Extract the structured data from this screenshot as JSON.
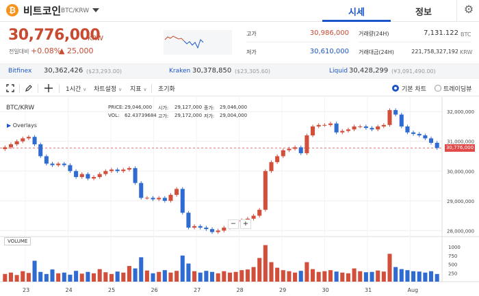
{
  "header": {
    "coin_symbol": "₿",
    "coin_name": "비트코인",
    "pair": "BTC/KRW",
    "tabs": [
      "시세",
      "정보"
    ],
    "settings_icon": "gear-icon"
  },
  "price": {
    "value": "30,776,000",
    "unit": "KRW",
    "change_label": "전일대비",
    "change_pct": "+0.08%",
    "change_amt": "▲ 25,000"
  },
  "stats": {
    "high_label": "고가",
    "high_value": "30,986,000",
    "low_label": "저가",
    "low_value": "30,610,000",
    "volume_label": "거래량(24H)",
    "volume_value": "7,131.122",
    "volume_unit": "BTC",
    "amount_label": "거래대금(24H)",
    "amount_value": "221,758,327,192",
    "amount_unit": "KRW"
  },
  "exchanges": [
    {
      "name": "Bitfinex",
      "value": "30,362,426",
      "krw": "($23,293.00)"
    },
    {
      "name": "Kraken",
      "value": "30,378,850",
      "krw": "($23,305.60)"
    },
    {
      "name": "Liquid",
      "value": "30,428,299",
      "krw": "(¥3,091,490.00)"
    }
  ],
  "toolbar": {
    "interval": "1시간",
    "chart_settings": "차트설정",
    "indicators": "지표",
    "reset": "초기화",
    "view_basic": "기본 차트",
    "view_tradingview": "트레이딩뷰",
    "selected_view": "기본 차트"
  },
  "chart_info": {
    "symbol": "BTC/KRW",
    "overlays": "Overlays",
    "price_label": "PRICE:",
    "price_value": "29,046,000",
    "vol_label": "VOL:",
    "vol_value": "62.43739684",
    "open_label": "시가:",
    "open_value": "29,127,000",
    "high_label": "고가:",
    "high_value": "29,172,000",
    "close_label": "종가:",
    "close_value": "29,046,000",
    "low_label": "저가:",
    "low_value": "29,004,000",
    "volume_title": "VOLUME",
    "current_price_tag": "30,776,000",
    "zoom_out": "−",
    "zoom_in": "+"
  },
  "chart_data": {
    "type": "candlestick",
    "interval": "1h",
    "price_axis": [
      "32,000,000",
      "31,000,000",
      "30,000,000",
      "29,000,000",
      "28,000,000"
    ],
    "price_axis_values": [
      32000000,
      31000000,
      30000000,
      29000000,
      28000000
    ],
    "ylim": [
      27800000,
      32350000
    ],
    "volume_axis": [
      "1000",
      "750",
      "500",
      "250"
    ],
    "volume_axis_values": [
      1000,
      750,
      500,
      250
    ],
    "volume_ylim": [
      0,
      1100
    ],
    "x_ticks": [
      "23",
      "24",
      "25",
      "26",
      "27",
      "28",
      "29",
      "30",
      "31",
      "Aug"
    ],
    "current_price": 30776000,
    "close_series": [
      30800000,
      30900000,
      31000000,
      31100000,
      31150000,
      30900000,
      30500000,
      30250000,
      30200000,
      30250000,
      30200000,
      30000000,
      29800000,
      29900000,
      29750000,
      29800000,
      29900000,
      30000000,
      30050000,
      30000000,
      30050000,
      30100000,
      29600000,
      29100000,
      29100000,
      29050000,
      29100000,
      29000000,
      29200000,
      29400000,
      28600000,
      28100000,
      28150000,
      28100000,
      28050000,
      27950000,
      28000000,
      28100000,
      28200000,
      28300000,
      28350000,
      28400000,
      28500000,
      28700000,
      30000000,
      30300000,
      30500000,
      30700000,
      30750000,
      30800000,
      30600000,
      31200000,
      31500000,
      31550000,
      31550000,
      31600000,
      31300000,
      31350000,
      31400000,
      31500000,
      31500000,
      31450000,
      31400000,
      31500000,
      31550000,
      32050000,
      31900000,
      31500000,
      31300000,
      31250000,
      31200000,
      31100000,
      30950000,
      30776000
    ],
    "volume_series": [
      220,
      260,
      190,
      300,
      250,
      600,
      280,
      220,
      350,
      240,
      260,
      200,
      310,
      230,
      280,
      240,
      360,
      270,
      220,
      290,
      260,
      450,
      380,
      700,
      320,
      240,
      280,
      330,
      260,
      310,
      750,
      520,
      300,
      260,
      310,
      280,
      240,
      300,
      260,
      280,
      330,
      350,
      420,
      680,
      1050,
      560,
      400,
      330,
      300,
      260,
      310,
      560,
      360,
      280,
      300,
      330,
      290,
      260,
      240,
      380,
      300,
      270,
      280,
      320,
      290,
      800,
      420,
      360,
      330,
      300,
      290,
      260,
      300,
      220
    ]
  }
}
